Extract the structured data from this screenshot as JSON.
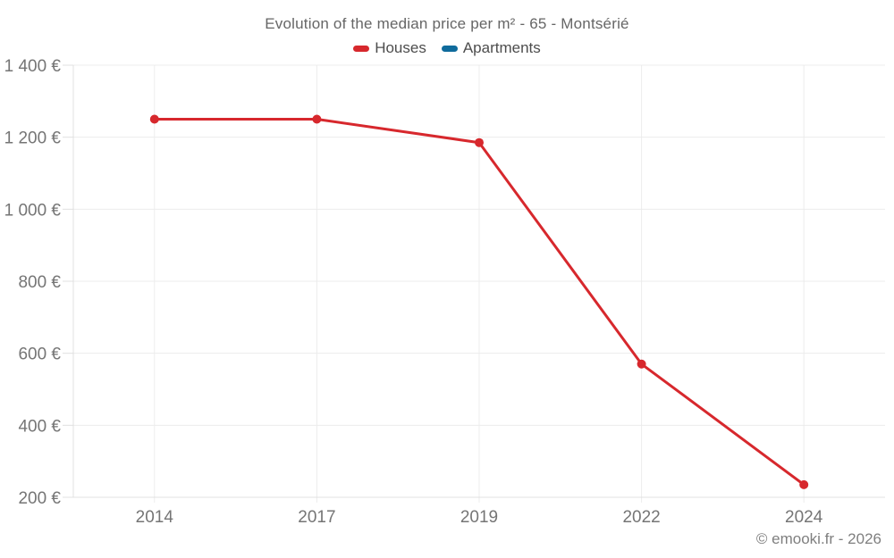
{
  "title": "Evolution of the median price per m² - 65 - Montsérié",
  "legend": {
    "items": [
      {
        "label": "Houses",
        "color": "#d7282d"
      },
      {
        "label": "Apartments",
        "color": "#0f6b9c"
      }
    ]
  },
  "footer": "© emooki.fr - 2026",
  "colors": {
    "houses": "#d7282d",
    "apartments": "#0f6b9c",
    "gridline": "#ececec",
    "axis": "#e0e0e0",
    "tick_label": "#757575"
  },
  "chart_data": {
    "type": "line",
    "title": "Evolution of the median price per m² - 65 - Montsérié",
    "categories": [
      "2014",
      "2017",
      "2019",
      "2022",
      "2024"
    ],
    "series": [
      {
        "name": "Houses",
        "color": "#d7282d",
        "values": [
          1250,
          1250,
          1185,
          570,
          235
        ]
      },
      {
        "name": "Apartments",
        "color": "#0f6b9c",
        "values": [
          null,
          null,
          null,
          null,
          null
        ]
      }
    ],
    "yticks": [
      200,
      400,
      600,
      800,
      1000,
      1200,
      1400
    ],
    "ytick_labels": [
      "200 €",
      "400 €",
      "600 €",
      "800 €",
      "1 000 €",
      "1 200 €",
      "1 400 €"
    ],
    "ylim": [
      200,
      1400
    ],
    "xlabel": "",
    "ylabel": "",
    "grid": true,
    "legend_position": "top"
  }
}
